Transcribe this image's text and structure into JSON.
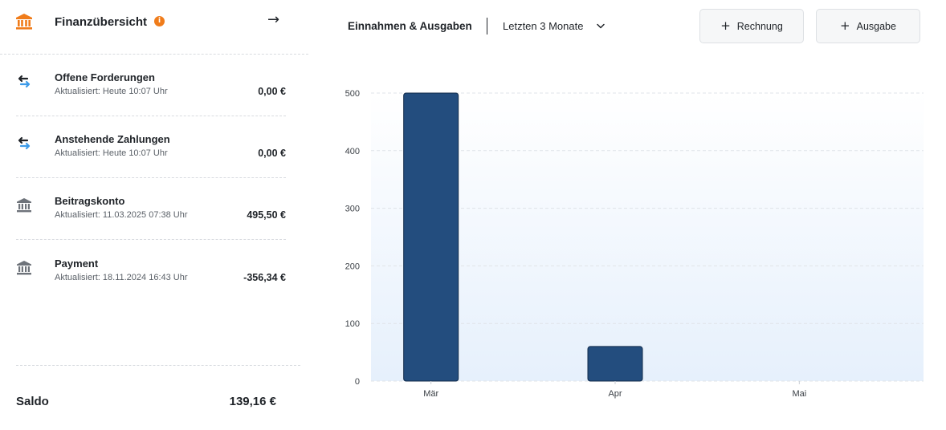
{
  "finance": {
    "title": "Finanzübersicht",
    "info_glyph": "i",
    "accounts": [
      {
        "name": "Offene Forderungen",
        "updated": "Aktualisiert: Heute 10:07 Uhr",
        "amount": "0,00 €",
        "icon": "transfer-icon"
      },
      {
        "name": "Anstehende Zahlungen",
        "updated": "Aktualisiert: Heute 10:07 Uhr",
        "amount": "0,00 €",
        "icon": "transfer-icon"
      },
      {
        "name": "Beitragskonto",
        "updated": "Aktualisiert: 11.03.2025 07:38 Uhr",
        "amount": "495,50 €",
        "icon": "bank-icon"
      },
      {
        "name": "Payment",
        "updated": "Aktualisiert: 18.11.2024 16:43 Uhr",
        "amount": "-356,34 €",
        "icon": "bank-icon"
      }
    ],
    "saldo_label": "Saldo",
    "saldo_value": "139,16 €"
  },
  "chart_header": {
    "title": "Einnahmen & Ausgaben",
    "period": "Letzten 3 Monate"
  },
  "buttons": {
    "invoice": "Rechnung",
    "expense": "Ausgabe"
  },
  "colors": {
    "accent": "#f07c1a",
    "bar": "#234d7e",
    "blue_arrow": "#3d9be9"
  },
  "chart_data": {
    "type": "bar",
    "categories": [
      "Mär",
      "Apr",
      "Mai"
    ],
    "values": [
      500,
      60,
      0
    ],
    "yticks": [
      0,
      100,
      200,
      300,
      400,
      500
    ],
    "ylim": [
      0,
      500
    ],
    "grid": true
  }
}
